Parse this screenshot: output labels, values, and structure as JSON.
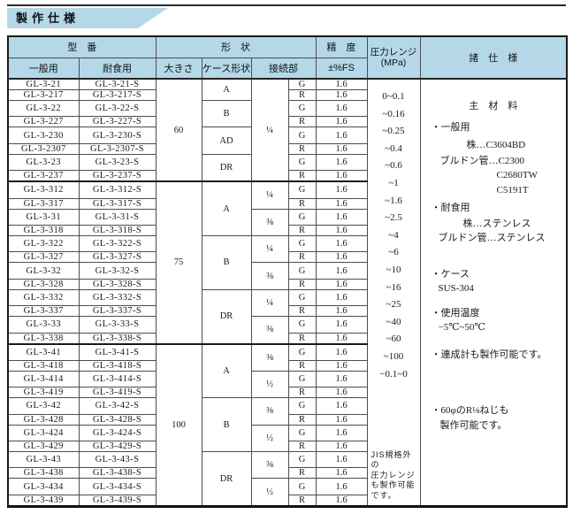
{
  "title": "製作仕様",
  "table": {
    "headers": {
      "model": "型　番",
      "model_general": "一般用",
      "model_corrosion": "耐食用",
      "shape": "形　状",
      "size": "大きさ",
      "case_shape": "ケース形状",
      "connection": "接続部",
      "accuracy": "精　度",
      "accuracy_unit": "±%FS",
      "pressure1": "圧力レンジ",
      "pressure2": "(MPa)",
      "specs": "諸　仕　様"
    },
    "size_groups": [
      {
        "size": "60",
        "span": 8
      },
      {
        "size": "75",
        "span": 12
      },
      {
        "size": "100",
        "span": 12
      }
    ],
    "case_groups": [
      {
        "label": "A",
        "span": 2
      },
      {
        "label": "B",
        "span": 2
      },
      {
        "label": "AD",
        "span": 2
      },
      {
        "label": "DR",
        "span": 2
      },
      {
        "label": "A",
        "span": 4
      },
      {
        "label": "B",
        "span": 4
      },
      {
        "label": "DR",
        "span": 4
      },
      {
        "label": "A",
        "span": 4
      },
      {
        "label": "B",
        "span": 4
      },
      {
        "label": "DR",
        "span": 4
      }
    ],
    "thread_groups": [
      {
        "label": "¼",
        "span": 8
      },
      {
        "label": "¼",
        "span": 2
      },
      {
        "label": "⅜",
        "span": 2
      },
      {
        "label": "¼",
        "span": 2
      },
      {
        "label": "⅜",
        "span": 2
      },
      {
        "label": "¼",
        "span": 2
      },
      {
        "label": "⅜",
        "span": 2
      },
      {
        "label": "⅜",
        "span": 2
      },
      {
        "label": "½",
        "span": 2
      },
      {
        "label": "⅜",
        "span": 2
      },
      {
        "label": "½",
        "span": 2
      },
      {
        "label": "⅜",
        "span": 2
      },
      {
        "label": "½",
        "span": 2
      }
    ],
    "rows": [
      {
        "general": "GL-3-21",
        "corrosion": "GL-3-21-S",
        "conn": "G",
        "acc": "1.6"
      },
      {
        "general": "GL-3-217",
        "corrosion": "GL-3-217-S",
        "conn": "R",
        "acc": "1.6"
      },
      {
        "general": "GL-3-22",
        "corrosion": "GL-3-22-S",
        "conn": "G",
        "acc": "1.6"
      },
      {
        "general": "GL-3-227",
        "corrosion": "GL-3-227-S",
        "conn": "R",
        "acc": "1.6"
      },
      {
        "general": "GL-3-230",
        "corrosion": "GL-3-230-S",
        "conn": "G",
        "acc": "1.6"
      },
      {
        "general": "GL-3-2307",
        "corrosion": "GL-3-2307-S",
        "conn": "R",
        "acc": "1.6"
      },
      {
        "general": "GL-3-23",
        "corrosion": "GL-3-23-S",
        "conn": "G",
        "acc": "1.6"
      },
      {
        "general": "GL-3-237",
        "corrosion": "GL-3-237-S",
        "conn": "R",
        "acc": "1.6"
      },
      {
        "general": "GL-3-312",
        "corrosion": "GL-3-312-S",
        "conn": "G",
        "acc": "1.6"
      },
      {
        "general": "GL-3-317",
        "corrosion": "GL-3-317-S",
        "conn": "R",
        "acc": "1.6"
      },
      {
        "general": "GL-3-31",
        "corrosion": "GL-3-31-S",
        "conn": "G",
        "acc": "1.6"
      },
      {
        "general": "GL-3-318",
        "corrosion": "GL-3-318-S",
        "conn": "R",
        "acc": "1.6"
      },
      {
        "general": "GL-3-322",
        "corrosion": "GL-3-322-S",
        "conn": "G",
        "acc": "1.6"
      },
      {
        "general": "GL-3-327",
        "corrosion": "GL-3-327-S",
        "conn": "R",
        "acc": "1.6"
      },
      {
        "general": "GL-3-32",
        "corrosion": "GL-3-32-S",
        "conn": "G",
        "acc": "1.6"
      },
      {
        "general": "GL-3-328",
        "corrosion": "GL-3-328-S",
        "conn": "R",
        "acc": "1.6"
      },
      {
        "general": "GL-3-332",
        "corrosion": "GL-3-332-S",
        "conn": "G",
        "acc": "1.6"
      },
      {
        "general": "GL-3-337",
        "corrosion": "GL-3-337-S",
        "conn": "R",
        "acc": "1.6"
      },
      {
        "general": "GL-3-33",
        "corrosion": "GL-3-33-S",
        "conn": "G",
        "acc": "1.6"
      },
      {
        "general": "GL-3-338",
        "corrosion": "GL-3-338-S",
        "conn": "R",
        "acc": "1.6"
      },
      {
        "general": "GL-3-41",
        "corrosion": "GL-3-41-S",
        "conn": "G",
        "acc": "1.6"
      },
      {
        "general": "GL-3-418",
        "corrosion": "GL-3-418-S",
        "conn": "R",
        "acc": "1.6"
      },
      {
        "general": "GL-3-414",
        "corrosion": "GL-3-414-S",
        "conn": "G",
        "acc": "1.6"
      },
      {
        "general": "GL-3-419",
        "corrosion": "GL-3-419-S",
        "conn": "R",
        "acc": "1.6"
      },
      {
        "general": "GL-3-42",
        "corrosion": "GL-3-42-S",
        "conn": "G",
        "acc": "1.6"
      },
      {
        "general": "GL-3-428",
        "corrosion": "GL-3-428-S",
        "conn": "R",
        "acc": "1.6"
      },
      {
        "general": "GL-3-424",
        "corrosion": "GL-3-424-S",
        "conn": "G",
        "acc": "1.6"
      },
      {
        "general": "GL-3-429",
        "corrosion": "GL-3-429-S",
        "conn": "R",
        "acc": "1.6"
      },
      {
        "general": "GL-3-43",
        "corrosion": "GL-3-43-S",
        "conn": "G",
        "acc": "1.6"
      },
      {
        "general": "GL-3-438",
        "corrosion": "GL-3-438-S",
        "conn": "R",
        "acc": "1.6"
      },
      {
        "general": "GL-3-434",
        "corrosion": "GL-3-434-S",
        "conn": "G",
        "acc": "1.6"
      },
      {
        "general": "GL-3-439",
        "corrosion": "GL-3-439-S",
        "conn": "R",
        "acc": "1.6"
      }
    ]
  },
  "pressure": {
    "values": [
      "0~0.1",
      "~0.16",
      "~0.25",
      "~0.4",
      "~0.6",
      "~1",
      "~1.6",
      "~2.5",
      "~4",
      "~6",
      "~10",
      "~16",
      "~25",
      "~40",
      "~60",
      "~100",
      "−0.1~0"
    ],
    "note": "JIS規格外の\n圧力レンジ\nも製作可能\nです。"
  },
  "specs": {
    "lines": [
      {
        "text": "主　材　料",
        "indent": 0,
        "mt": 16,
        "align": "center"
      },
      {
        "text": "・一般用",
        "indent": 12,
        "mt": 7
      },
      {
        "text": "株…C3604BD",
        "indent": 52,
        "mt": 4
      },
      {
        "text": "ブルドン管…C2300",
        "indent": 22,
        "mt": 1
      },
      {
        "text": "C2680TW",
        "indent": 86,
        "mt": 0
      },
      {
        "text": "C5191T",
        "indent": 86,
        "mt": 0
      },
      {
        "text": "・耐食用",
        "indent": 12,
        "mt": 4
      },
      {
        "text": "株…ステンレス",
        "indent": 48,
        "mt": 1
      },
      {
        "text": "ブルドン管…ステンレス",
        "indent": 20,
        "mt": 0
      },
      {
        "text": "・ケース",
        "indent": 12,
        "mt": 24
      },
      {
        "text": "SUS-304",
        "indent": 20,
        "mt": 0
      },
      {
        "text": "・使用温度",
        "indent": 12,
        "mt": 11
      },
      {
        "text": "−5℃~50℃",
        "indent": 20,
        "mt": 0
      },
      {
        "text": "・連成計も製作可能です。",
        "indent": 12,
        "mt": 14
      },
      {
        "text": "・60φのR⅛ねじも",
        "indent": 12,
        "mt": 47
      },
      {
        "text": "製作可能です。",
        "indent": 22,
        "mt": 0
      }
    ]
  },
  "colors": {
    "header_bg": "#b4d8e8",
    "border": "#4d4d4d",
    "text": "#1a1a1a"
  }
}
